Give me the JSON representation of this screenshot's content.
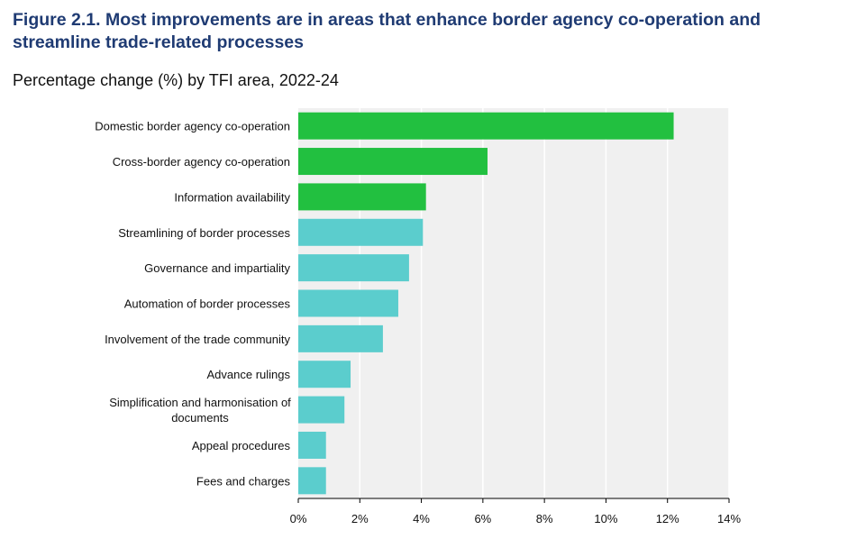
{
  "figure": {
    "title": "Figure 2.1. Most improvements are in areas that enhance border agency co-operation and streamline trade-related processes",
    "subtitle": "Percentage change (%) by TFI area, 2022-24"
  },
  "colors": {
    "highlight": "#22c040",
    "standard": "#5bcdcd",
    "plot_bg": "#f0f0f0",
    "grid": "#ffffff",
    "title": "#1f3b73"
  },
  "chart_data": {
    "type": "bar",
    "orientation": "horizontal",
    "title": "Figure 2.1. Most improvements are in areas that enhance border agency co-operation and streamline trade-related processes",
    "subtitle": "Percentage change (%) by TFI area, 2022-24",
    "xlabel": "",
    "ylabel": "",
    "xlim": [
      0,
      14
    ],
    "xticks": [
      0,
      2,
      4,
      6,
      8,
      10,
      12,
      14
    ],
    "tick_suffix": "%",
    "grid": true,
    "categories": [
      "Domestic border agency co-operation",
      "Cross-border agency co-operation",
      "Information availability",
      "Streamlining of border processes",
      "Governance and impartiality",
      "Automation of border processes",
      "Involvement of the trade community",
      "Advance rulings",
      "Simplification and harmonisation of documents",
      "Appeal procedures",
      "Fees and charges"
    ],
    "label_lines": [
      [
        "Domestic border agency co-operation"
      ],
      [
        "Cross-border agency co-operation"
      ],
      [
        "Information availability"
      ],
      [
        "Streamlining of border processes"
      ],
      [
        "Governance and impartiality"
      ],
      [
        "Automation of border processes"
      ],
      [
        "Involvement of the trade community"
      ],
      [
        "Advance rulings"
      ],
      [
        "Simplification and harmonisation of",
        "documents"
      ],
      [
        "Appeal procedures"
      ],
      [
        "Fees and charges"
      ]
    ],
    "values": [
      12.2,
      6.15,
      4.15,
      4.05,
      3.6,
      3.25,
      2.75,
      1.7,
      1.5,
      0.9,
      0.9
    ],
    "highlighted": [
      true,
      true,
      true,
      false,
      false,
      false,
      false,
      false,
      false,
      false,
      false
    ]
  }
}
